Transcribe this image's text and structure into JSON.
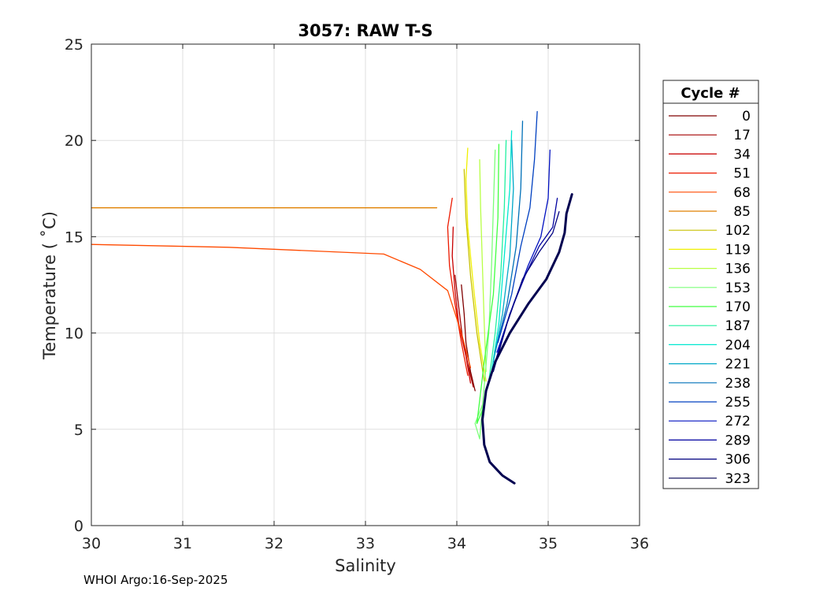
{
  "chart_data": {
    "type": "line",
    "title": "3057: RAW T-S",
    "xlabel": "Salinity",
    "ylabel": "Temperature ( ˚C)",
    "xlim": [
      30,
      36
    ],
    "ylim": [
      0,
      25
    ],
    "xticks": [
      30,
      31,
      32,
      33,
      34,
      35,
      36
    ],
    "yticks": [
      0,
      5,
      10,
      15,
      20,
      25
    ],
    "grid": true,
    "legend": {
      "title": "Cycle #",
      "placement": "outside-right",
      "entries": [
        {
          "label": "0",
          "color": "#800000"
        },
        {
          "label": "17",
          "color": "#a40000"
        },
        {
          "label": "34",
          "color": "#c80000"
        },
        {
          "label": "51",
          "color": "#ec1a00"
        },
        {
          "label": "68",
          "color": "#ff4a00"
        },
        {
          "label": "85",
          "color": "#e08000"
        },
        {
          "label": "102",
          "color": "#c8c000"
        },
        {
          "label": "119",
          "color": "#f0f000"
        },
        {
          "label": "136",
          "color": "#b8ff46"
        },
        {
          "label": "153",
          "color": "#7cff7a"
        },
        {
          "label": "170",
          "color": "#40ff40"
        },
        {
          "label": "187",
          "color": "#20f0a0"
        },
        {
          "label": "204",
          "color": "#00e8d0"
        },
        {
          "label": "221",
          "color": "#00a8c8"
        },
        {
          "label": "238",
          "color": "#0070b8"
        },
        {
          "label": "255",
          "color": "#0040c0"
        },
        {
          "label": "272",
          "color": "#0010c0"
        },
        {
          "label": "289",
          "color": "#0000a0"
        },
        {
          "label": "306",
          "color": "#000080"
        },
        {
          "label": "323",
          "color": "#000050"
        }
      ]
    },
    "series": [
      {
        "name": "0",
        "color": "#800000",
        "x": [
          34.2,
          34.15,
          34.1,
          34.08,
          34.05
        ],
        "y": [
          7.0,
          8.0,
          9.5,
          11.0,
          12.5
        ]
      },
      {
        "name": "17",
        "color": "#a40000",
        "x": [
          34.18,
          34.12,
          34.06,
          34.02,
          33.98
        ],
        "y": [
          7.2,
          8.4,
          9.8,
          11.4,
          13.0
        ]
      },
      {
        "name": "34",
        "color": "#c80000",
        "x": [
          34.15,
          34.1,
          34.02,
          33.98,
          33.95,
          33.96
        ],
        "y": [
          7.4,
          8.8,
          10.5,
          12.2,
          14.0,
          15.5
        ]
      },
      {
        "name": "51",
        "color": "#ec1a00",
        "x": [
          34.12,
          34.05,
          33.98,
          33.92,
          33.9,
          33.95
        ],
        "y": [
          7.8,
          9.5,
          11.5,
          13.5,
          15.5,
          17.0
        ]
      },
      {
        "name": "68",
        "color": "#ff4a00",
        "x": [
          30.0,
          31.5,
          33.2,
          33.6,
          33.9,
          34.05,
          34.15
        ],
        "y": [
          14.6,
          14.45,
          14.1,
          13.3,
          12.2,
          10.0,
          8.2
        ]
      },
      {
        "name": "85",
        "color": "#e08000",
        "x": [
          30.0,
          32.0,
          33.78
        ],
        "y": [
          16.5,
          16.5,
          16.5
        ]
      },
      {
        "name": "102",
        "color": "#c8c000",
        "x": [
          34.3,
          34.22,
          34.15,
          34.1,
          34.08
        ],
        "y": [
          7.5,
          10.0,
          13.0,
          16.0,
          18.5
        ]
      },
      {
        "name": "119",
        "color": "#f0f000",
        "x": [
          34.32,
          34.25,
          34.18,
          34.12,
          34.1,
          34.12
        ],
        "y": [
          7.5,
          9.5,
          12.5,
          15.5,
          18.0,
          19.6
        ]
      },
      {
        "name": "136",
        "color": "#b8ff46",
        "x": [
          34.32,
          34.3,
          34.28,
          34.26,
          34.25
        ],
        "y": [
          8.0,
          10.5,
          13.5,
          16.5,
          19.0
        ]
      },
      {
        "name": "153",
        "color": "#7cff7a",
        "x": [
          34.3,
          34.2,
          34.25,
          34.35,
          34.38,
          34.4,
          34.42
        ],
        "y": [
          6.5,
          5.3,
          4.5,
          10.0,
          13.5,
          16.5,
          19.5
        ]
      },
      {
        "name": "170",
        "color": "#40ff40",
        "x": [
          34.28,
          34.22,
          34.3,
          34.4,
          34.45,
          34.46
        ],
        "y": [
          6.0,
          5.3,
          8.5,
          12.0,
          16.0,
          19.8
        ]
      },
      {
        "name": "187",
        "color": "#20f0a0",
        "x": [
          34.35,
          34.42,
          34.48,
          34.52,
          34.54
        ],
        "y": [
          7.5,
          10.0,
          13.0,
          16.5,
          20.0
        ]
      },
      {
        "name": "204",
        "color": "#00e8d0",
        "x": [
          34.38,
          34.46,
          34.52,
          34.58,
          34.6
        ],
        "y": [
          8.0,
          10.5,
          14.0,
          17.5,
          20.5
        ]
      },
      {
        "name": "221",
        "color": "#00a8c8",
        "x": [
          34.4,
          34.5,
          34.58,
          34.62,
          34.6
        ],
        "y": [
          8.5,
          11.0,
          14.0,
          17.5,
          20.0
        ]
      },
      {
        "name": "238",
        "color": "#0070b8",
        "x": [
          34.42,
          34.55,
          34.65,
          34.7,
          34.72
        ],
        "y": [
          9.0,
          11.5,
          14.5,
          17.5,
          21.0
        ]
      },
      {
        "name": "255",
        "color": "#0040c0",
        "x": [
          34.45,
          34.6,
          34.7,
          34.8,
          34.85,
          34.88
        ],
        "y": [
          9.5,
          12.0,
          14.5,
          16.5,
          19.0,
          21.5
        ]
      },
      {
        "name": "272",
        "color": "#0010c0",
        "x": [
          34.44,
          34.62,
          34.78,
          34.92,
          35.0,
          35.02
        ],
        "y": [
          9.0,
          11.5,
          13.5,
          15.0,
          17.0,
          19.5
        ]
      },
      {
        "name": "289",
        "color": "#0000a0",
        "x": [
          34.42,
          34.58,
          34.75,
          34.9,
          35.05,
          35.1
        ],
        "y": [
          8.5,
          11.0,
          13.0,
          14.5,
          15.5,
          17.0
        ]
      },
      {
        "name": "306",
        "color": "#000080",
        "x": [
          34.4,
          34.55,
          34.72,
          34.9,
          35.05,
          35.12
        ],
        "y": [
          8.0,
          10.5,
          12.8,
          14.2,
          15.2,
          16.3
        ]
      },
      {
        "name": "323",
        "color": "#000050",
        "x": [
          34.63,
          34.5,
          34.36,
          34.3,
          34.28,
          34.32,
          34.42,
          34.58,
          34.78,
          34.98,
          35.12,
          35.18,
          35.2,
          35.26
        ],
        "y": [
          2.2,
          2.6,
          3.3,
          4.2,
          5.5,
          7.0,
          8.5,
          10.0,
          11.5,
          12.8,
          14.2,
          15.2,
          16.2,
          17.2
        ]
      }
    ]
  },
  "footer": {
    "text": "WHOI Argo:16-Sep-2025"
  }
}
